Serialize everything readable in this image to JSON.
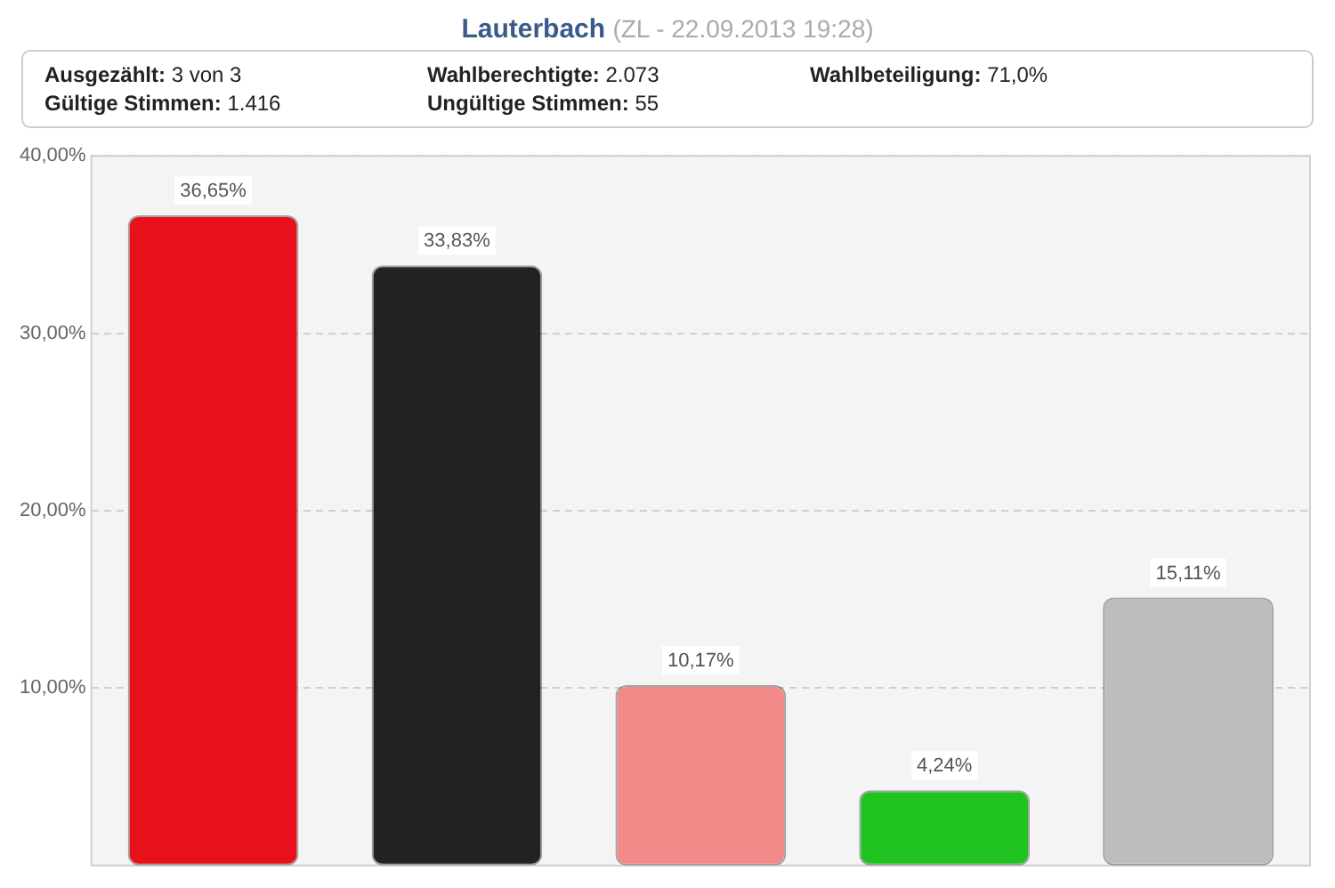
{
  "chart_data": {
    "type": "bar",
    "title": "Lauterbach",
    "subtitle": "(ZL - 22.09.2013 19:28)",
    "annotations": [
      "Ausgezählt: 3 von 3",
      "Wahlberechtigte: 2.073",
      "Wahlbeteiligung: 71,0%",
      "Gültige Stimmen: 1.416",
      "Ungültige Stimmen: 55"
    ],
    "categories": [
      null,
      null,
      null,
      null,
      null
    ],
    "values": [
      36.65,
      33.83,
      10.17,
      4.24,
      15.11
    ],
    "colors": [
      "#e8101a",
      "#222222",
      "#f28a8a",
      "#1fc21f",
      "#bdbdbd"
    ],
    "value_labels": [
      "36,65%",
      "33,83%",
      "10,17%",
      "4,24%",
      "15,11%"
    ],
    "ylim": [
      0,
      40
    ],
    "yticks": [
      {
        "value": 10,
        "label": "10,00%"
      },
      {
        "value": 20,
        "label": "20,00%"
      },
      {
        "value": 30,
        "label": "30,00%"
      },
      {
        "value": 40,
        "label": "40,00%"
      }
    ],
    "grid": "y",
    "legend": false
  }
}
